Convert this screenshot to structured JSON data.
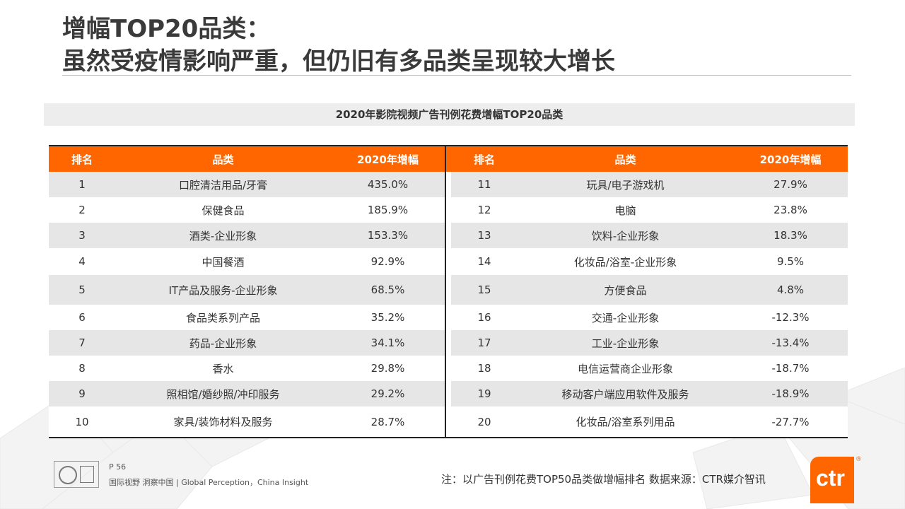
{
  "page": {
    "title_line1": "增幅TOP20品类：",
    "title_line2": "虽然受疫情影响严重，但仍旧有多品类呈现较大增长",
    "subtitle": "2020年影院视频广告刊例花费增幅TOP20品类"
  },
  "table": {
    "headers": [
      "排名",
      "品类",
      "2020年增幅"
    ],
    "left": [
      {
        "rank": "1",
        "category": "口腔清洁用品/牙膏",
        "growth": "435.0%"
      },
      {
        "rank": "2",
        "category": "保健食品",
        "growth": "185.9%"
      },
      {
        "rank": "3",
        "category": "酒类-企业形象",
        "growth": "153.3%"
      },
      {
        "rank": "4",
        "category": "中国餐酒",
        "growth": "92.9%"
      },
      {
        "rank": "5",
        "category": "IT产品及服务-企业形象",
        "growth": "68.5%"
      },
      {
        "rank": "6",
        "category": "食品类系列产品",
        "growth": "35.2%"
      },
      {
        "rank": "7",
        "category": "药品-企业形象",
        "growth": "34.1%"
      },
      {
        "rank": "8",
        "category": "香水",
        "growth": "29.8%"
      },
      {
        "rank": "9",
        "category": "照相馆/婚纱照/冲印服务",
        "growth": "29.2%"
      },
      {
        "rank": "10",
        "category": "家具/装饰材料及服务",
        "growth": "28.7%"
      }
    ],
    "right": [
      {
        "rank": "11",
        "category": "玩具/电子游戏机",
        "growth": "27.9%"
      },
      {
        "rank": "12",
        "category": "电脑",
        "growth": "23.8%"
      },
      {
        "rank": "13",
        "category": "饮料-企业形象",
        "growth": "18.3%"
      },
      {
        "rank": "14",
        "category": "化妆品/浴室-企业形象",
        "growth": "9.5%"
      },
      {
        "rank": "15",
        "category": "方便食品",
        "growth": "4.8%"
      },
      {
        "rank": "16",
        "category": "交通-企业形象",
        "growth": "-12.3%"
      },
      {
        "rank": "17",
        "category": "工业-企业形象",
        "growth": "-13.4%"
      },
      {
        "rank": "18",
        "category": "电信运营商企业形象",
        "growth": "-18.7%"
      },
      {
        "rank": "19",
        "category": "移动客户端应用软件及服务",
        "growth": "-18.9%"
      },
      {
        "rank": "20",
        "category": "化妆品/浴室系列用品",
        "growth": "-27.7%"
      }
    ]
  },
  "footer": {
    "page_number": "P 56",
    "slogan": "国际视野  洞察中国 |  Global Perception，China Insight",
    "note": "注：以广告刊例花费TOP50品类做增幅排名   数据来源：CTR媒介智讯",
    "brand": "ctr",
    "registered_mark": "®"
  },
  "colors": {
    "header_orange": "#ff6600",
    "stripe_gray": "#e6e6e6",
    "text": "#333333"
  }
}
